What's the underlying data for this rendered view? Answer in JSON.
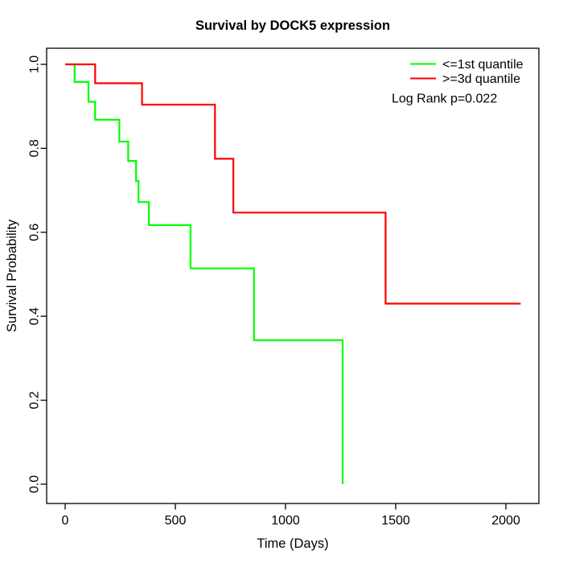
{
  "figure": {
    "title": "Survival by DOCK5 expression",
    "background_color": "#ffffff",
    "axis_color": "#000000"
  },
  "legend": {
    "entries": [
      {
        "label": "<=1st quantile",
        "color": "#00ff00"
      },
      {
        "label": ">=3d quantile",
        "color": "#ff0000"
      }
    ],
    "annotation": "Log Rank p=0.022"
  },
  "chart_data": {
    "type": "line",
    "subtype": "kaplan-meier-step-survival-curves",
    "title": "Survival by DOCK5 expression",
    "xlabel": "Time (Days)",
    "ylabel": "Survival Probability",
    "xlim": [
      0,
      2100
    ],
    "ylim": [
      0.0,
      1.0
    ],
    "xticks": [
      "0",
      "500",
      "1000",
      "1500",
      "2000"
    ],
    "xtick_values": [
      0,
      500,
      1000,
      1500,
      2000
    ],
    "yticks": [
      "0.0",
      "0.2",
      "0.4",
      "0.6",
      "0.8",
      "1.0"
    ],
    "ytick_values": [
      0.0,
      0.2,
      0.4,
      0.6,
      0.8,
      1.0
    ],
    "grid": false,
    "legend_position": "top-right-inside",
    "annotation": "Log Rank p=0.022",
    "series": [
      {
        "name": "<=1st quantile",
        "color": "#00ff00",
        "x": [
          0,
          43,
          106,
          136,
          246,
          286,
          322,
          333,
          380,
          569,
          857,
          1259
        ],
        "y": [
          1.0,
          0.958,
          0.911,
          0.868,
          0.816,
          0.77,
          0.722,
          0.672,
          0.617,
          0.514,
          0.343,
          0.0
        ]
      },
      {
        "name": ">=3d quantile",
        "color": "#ff0000",
        "x": [
          0,
          136,
          349,
          680,
          763,
          1454,
          2067
        ],
        "y": [
          1.0,
          0.955,
          0.904,
          0.775,
          0.647,
          0.43,
          0.43
        ]
      }
    ]
  }
}
